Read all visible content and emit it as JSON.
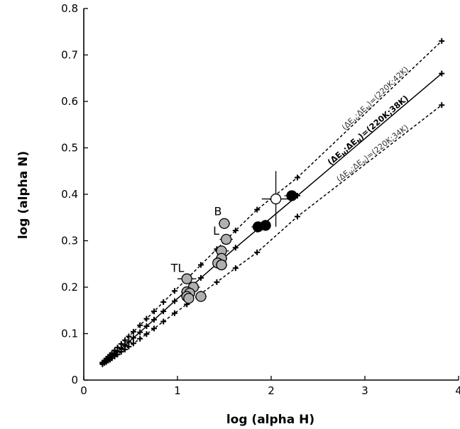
{
  "chart_data": {
    "type": "scatter",
    "xlabel": "log (alpha H)",
    "ylabel": "log (alpha N)",
    "xlim": [
      0,
      4
    ],
    "ylim": [
      0,
      0.8
    ],
    "x_ticks": [
      "0",
      "1",
      "2",
      "3",
      "4"
    ],
    "y_ticks": [
      "0",
      "0.1",
      "0.2",
      "0.3",
      "0.4",
      "0.5",
      "0.6",
      "0.7",
      "0.8"
    ],
    "grid": false,
    "model_lines": [
      {
        "label_parts": [
          "(ΔE",
          "H",
          ";ΔE",
          "N",
          ")=(220K;42K)"
        ],
        "style": "dashed",
        "bold": false,
        "x": [
          0.2,
          0.22,
          0.24,
          0.26,
          0.28,
          0.3,
          0.33,
          0.36,
          0.4,
          0.44,
          0.48,
          0.53,
          0.6,
          0.67,
          0.75,
          0.85,
          0.97,
          1.1,
          1.25,
          1.42,
          1.62,
          1.85,
          2.28,
          3.82
        ],
        "y": [
          0.038,
          0.042,
          0.046,
          0.05,
          0.054,
          0.058,
          0.064,
          0.07,
          0.078,
          0.086,
          0.094,
          0.104,
          0.118,
          0.132,
          0.148,
          0.168,
          0.192,
          0.218,
          0.248,
          0.282,
          0.322,
          0.367,
          0.436,
          0.73
        ]
      },
      {
        "label_parts": [
          "(ΔE",
          "H",
          ";ΔE",
          "N",
          ")=(220K;38K)"
        ],
        "style": "solid",
        "bold": true,
        "x": [
          0.2,
          0.22,
          0.24,
          0.26,
          0.28,
          0.3,
          0.33,
          0.36,
          0.4,
          0.44,
          0.48,
          0.53,
          0.6,
          0.67,
          0.75,
          0.85,
          0.97,
          1.1,
          1.25,
          1.42,
          1.62,
          1.85,
          2.28,
          3.82
        ],
        "y": [
          0.036,
          0.039,
          0.042,
          0.045,
          0.048,
          0.051,
          0.056,
          0.061,
          0.068,
          0.075,
          0.082,
          0.091,
          0.103,
          0.116,
          0.13,
          0.148,
          0.17,
          0.193,
          0.22,
          0.25,
          0.285,
          0.324,
          0.397,
          0.66
        ]
      },
      {
        "label_parts": [
          "(ΔE",
          "H",
          ";ΔE",
          "N",
          ")=(220K;34K)"
        ],
        "style": "dashed",
        "bold": false,
        "x": [
          0.2,
          0.22,
          0.24,
          0.26,
          0.28,
          0.3,
          0.33,
          0.36,
          0.4,
          0.44,
          0.48,
          0.53,
          0.6,
          0.67,
          0.75,
          0.85,
          0.97,
          1.1,
          1.25,
          1.42,
          1.62,
          1.85,
          2.28,
          3.82
        ],
        "y": [
          0.034,
          0.037,
          0.039,
          0.042,
          0.044,
          0.047,
          0.051,
          0.055,
          0.061,
          0.066,
          0.072,
          0.079,
          0.089,
          0.099,
          0.111,
          0.126,
          0.144,
          0.163,
          0.186,
          0.211,
          0.241,
          0.275,
          0.352,
          0.592
        ]
      }
    ],
    "series": [
      {
        "marker": "filled-black",
        "points": [
          {
            "x": 1.86,
            "y": 0.33,
            "xerr": 0.07,
            "yerr": 0
          },
          {
            "x": 1.94,
            "y": 0.333,
            "xerr": 0.05,
            "yerr": 0
          },
          {
            "x": 2.22,
            "y": 0.397,
            "xerr": 0.08,
            "yerr": 0
          }
        ]
      },
      {
        "marker": "open-white",
        "points": [
          {
            "x": 2.05,
            "y": 0.39,
            "xerr": 0.15,
            "yerr": 0.06
          }
        ]
      },
      {
        "marker": "filled-grey",
        "points": [
          {
            "x": 1.5,
            "y": 0.337,
            "xerr": 0.06,
            "yerr": 0
          },
          {
            "x": 1.52,
            "y": 0.303,
            "xerr": 0.07,
            "yerr": 0
          },
          {
            "x": 1.47,
            "y": 0.278,
            "xerr": 0.08,
            "yerr": 0
          },
          {
            "x": 1.47,
            "y": 0.262,
            "xerr": 0.06,
            "yerr": 0
          },
          {
            "x": 1.43,
            "y": 0.252,
            "xerr": 0.05,
            "yerr": 0
          },
          {
            "x": 1.47,
            "y": 0.248,
            "xerr": 0.06,
            "yerr": 0
          },
          {
            "x": 1.1,
            "y": 0.218,
            "xerr": 0.1,
            "yerr": 0
          },
          {
            "x": 1.17,
            "y": 0.2,
            "xerr": 0.07,
            "yerr": 0
          },
          {
            "x": 1.1,
            "y": 0.19,
            "xerr": 0.06,
            "yerr": 0
          },
          {
            "x": 1.13,
            "y": 0.187,
            "xerr": 0.05,
            "yerr": 0
          },
          {
            "x": 1.1,
            "y": 0.18,
            "xerr": 0.06,
            "yerr": 0
          },
          {
            "x": 1.25,
            "y": 0.18,
            "xerr": 0.06,
            "yerr": 0
          },
          {
            "x": 1.12,
            "y": 0.176,
            "xerr": 0.05,
            "yerr": 0
          }
        ]
      }
    ],
    "annotations": [
      {
        "text": "B",
        "x": 1.39,
        "y": 0.355
      },
      {
        "text": "L",
        "x": 1.38,
        "y": 0.313
      },
      {
        "text": "TL",
        "x": 0.93,
        "y": 0.233
      }
    ]
  }
}
